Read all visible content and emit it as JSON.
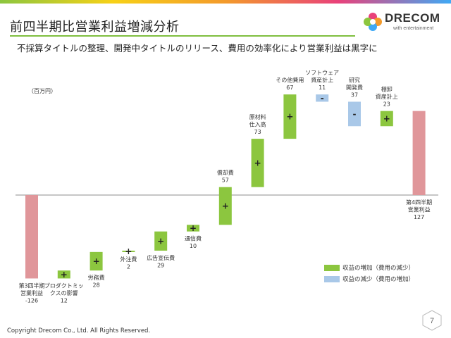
{
  "header": {
    "title": "前四半期比営業利益増減分析",
    "subtitle": "不採算タイトルの整理、開発中タイトルのリリース、費用の効率化により営業利益は黒字に"
  },
  "logo": {
    "name": "DRECOM",
    "tagline": "with entertainment"
  },
  "footer": {
    "copyright": "Copyright Drecom Co., Ltd. All Rights Reserved.",
    "page": "7"
  },
  "legend": [
    {
      "label": "収益の増加（費用の減少）",
      "color": "#8cc63f"
    },
    {
      "label": "収益の減少（費用の増加）",
      "color": "#a9c8e8"
    }
  ],
  "chart_data": {
    "type": "bar",
    "subtype": "waterfall",
    "unit_label": "（百万円）",
    "grid": false,
    "legend_position": "bottom-right",
    "colors": {
      "total": "#e0969a",
      "increase": "#8cc63f",
      "decrease": "#a9c8e8",
      "baseline": "#8c8c8c"
    },
    "steps": [
      {
        "label": [
          "第3四半期",
          "営業利益",
          "-126"
        ],
        "value": -126,
        "kind": "total",
        "sign": ""
      },
      {
        "label": [
          "プロダクトミッ",
          "クスの影響",
          "12"
        ],
        "value": 12,
        "kind": "increase",
        "sign": "+"
      },
      {
        "label": [
          "労務費",
          "28"
        ],
        "value": 28,
        "kind": "increase",
        "sign": "+"
      },
      {
        "label": [
          "外注費",
          "2"
        ],
        "value": 2,
        "kind": "increase",
        "sign": "+"
      },
      {
        "label": [
          "広告宣伝費",
          "29"
        ],
        "value": 29,
        "kind": "increase",
        "sign": "+"
      },
      {
        "label": [
          "通信費",
          "10"
        ],
        "value": 10,
        "kind": "increase",
        "sign": "+"
      },
      {
        "label": [
          "償却費",
          "57"
        ],
        "value": 57,
        "kind": "increase",
        "sign": "+"
      },
      {
        "label": [
          "原材料",
          "仕入高",
          "73"
        ],
        "value": 73,
        "kind": "increase",
        "sign": "+"
      },
      {
        "label": [
          "その他費用",
          "67"
        ],
        "value": 67,
        "kind": "increase",
        "sign": "+"
      },
      {
        "label": [
          "ソフトウェア",
          "資産計上",
          "11"
        ],
        "value": -11,
        "kind": "decrease",
        "sign": "-"
      },
      {
        "label": [
          "研究",
          "開発費",
          "37"
        ],
        "value": -37,
        "kind": "decrease",
        "sign": "-"
      },
      {
        "label": [
          "棚卸",
          "資産計上",
          "23"
        ],
        "value": 23,
        "kind": "increase",
        "sign": "+"
      },
      {
        "label": [
          "第4四半期",
          "営業利益",
          "127"
        ],
        "value": 127,
        "kind": "total",
        "sign": ""
      }
    ]
  }
}
